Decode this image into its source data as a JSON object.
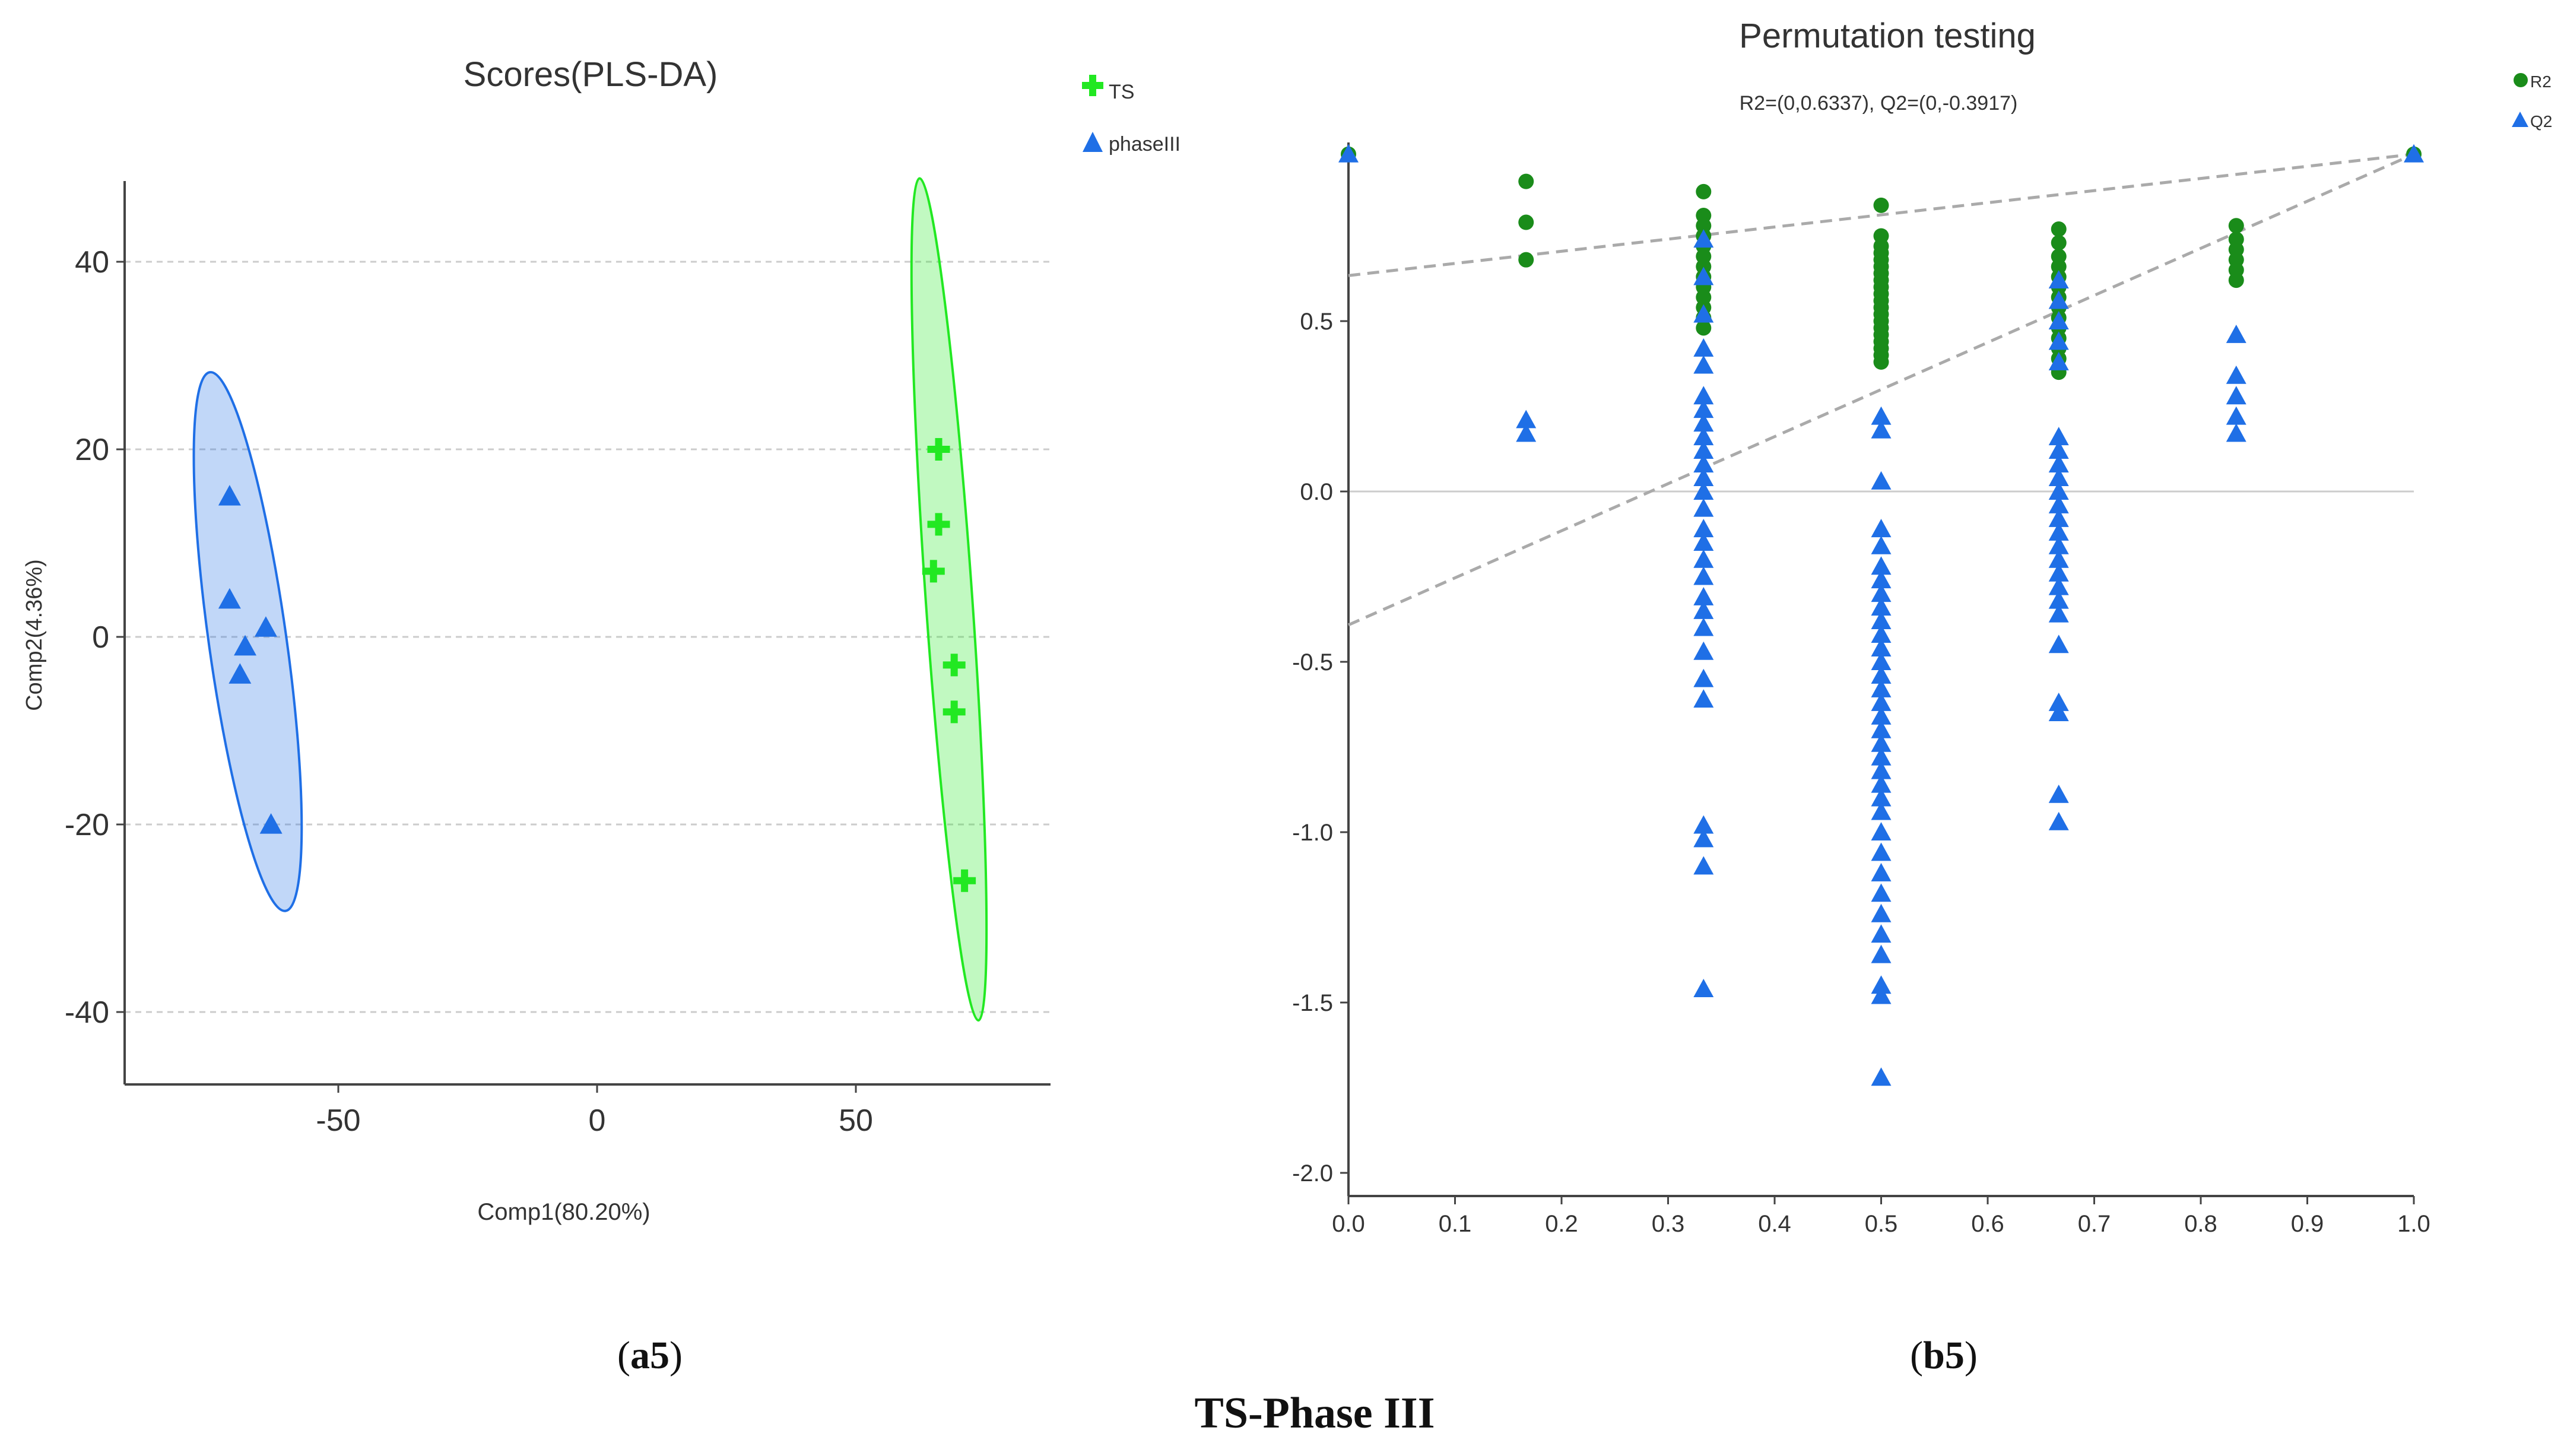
{
  "figure_title": "TS-Phase III",
  "colors": {
    "ts_green": "#22e822",
    "phase_blue": "#1f6fe6",
    "r2_green": "#1a8c1a",
    "q2_blue": "#1f6fe6",
    "axis": "#444444",
    "grid": "#cccccc",
    "trend": "#aaaaaa"
  },
  "panels": [
    {
      "caption": {
        "open": "(",
        "bold": "a5",
        "close": ")"
      }
    },
    {
      "caption": {
        "open": "(",
        "bold": "b5",
        "close": ")"
      }
    }
  ],
  "chart_data": [
    {
      "type": "scatter",
      "title": "Scores(PLS-DA)",
      "xlabel": "Comp1(80.20%)",
      "ylabel": "Comp2(4.36%)",
      "xlim": [
        -92,
        88
      ],
      "ylim": [
        -48,
        48
      ],
      "xticks": [
        -50,
        0,
        50
      ],
      "yticks": [
        40,
        20,
        0,
        -20,
        -40
      ],
      "xtick_labels": [
        "-50",
        "0",
        "50"
      ],
      "ytick_labels": [
        "40",
        "20",
        "0",
        "-20",
        "-40"
      ],
      "grid": "horizontal dashed",
      "legend_position": "top-right",
      "series": [
        {
          "name": "TS",
          "marker": "plus",
          "color": "#22e822",
          "x": [
            66,
            66,
            65,
            69,
            69,
            71
          ],
          "y": [
            20,
            12,
            7,
            -3,
            -8,
            -26
          ],
          "ellipse": {
            "cx": 68,
            "cy": 4,
            "rx": 4.5,
            "ry": 45,
            "angle_deg": 4
          }
        },
        {
          "name": "phaseIII",
          "marker": "triangle",
          "color": "#1f6fe6",
          "x": [
            -71,
            -71,
            -68,
            -64,
            -69,
            -63
          ],
          "y": [
            15,
            4,
            -1,
            1,
            -4,
            -20
          ],
          "ellipse": {
            "cx": -67.5,
            "cy": -0.5,
            "rx": 7.5,
            "ry": 29,
            "angle_deg": 8
          }
        }
      ]
    },
    {
      "type": "scatter",
      "title": "Permutation testing",
      "subtitle": "R2=(0,0.6337), Q2=(0,-0.3917)",
      "xlabel": "",
      "ylabel": "",
      "xlim": [
        0,
        1
      ],
      "ylim": [
        -2.05,
        1.03
      ],
      "xticks": [
        0,
        0.1,
        0.2,
        0.3,
        0.4,
        0.5,
        0.6,
        0.7,
        0.8,
        0.9,
        1.0
      ],
      "yticks": [
        0.5,
        0.0,
        -0.5,
        -1.0,
        -1.5,
        -2.0
      ],
      "xtick_labels": [
        "0.0",
        "0.1",
        "0.2",
        "0.3",
        "0.4",
        "0.5",
        "0.6",
        "0.7",
        "0.8",
        "0.9",
        "1.0"
      ],
      "ytick_labels": [
        "0.5",
        "0.0",
        "-0.5",
        "-1.0",
        "-1.5",
        "-2.0"
      ],
      "legend_position": "top-right",
      "reference_line_y": 0,
      "trend_lines": [
        {
          "name": "R2",
          "intercept": 0.6337,
          "end": [
            1.0,
            0.99
          ]
        },
        {
          "name": "Q2",
          "intercept": -0.3917,
          "end": [
            1.0,
            0.99
          ]
        }
      ],
      "series": [
        {
          "name": "R2",
          "marker": "circle",
          "color": "#1a8c1a",
          "points": [
            [
              0.0,
              0.99
            ],
            [
              0.1667,
              0.91
            ],
            [
              0.1667,
              0.79
            ],
            [
              0.1667,
              0.68
            ],
            [
              0.3333,
              0.88
            ],
            [
              0.3333,
              0.81
            ],
            [
              0.3333,
              0.78
            ],
            [
              0.3333,
              0.75
            ],
            [
              0.3333,
              0.72
            ],
            [
              0.3333,
              0.69
            ],
            [
              0.3333,
              0.66
            ],
            [
              0.3333,
              0.63
            ],
            [
              0.3333,
              0.6
            ],
            [
              0.3333,
              0.57
            ],
            [
              0.3333,
              0.54
            ],
            [
              0.3333,
              0.51
            ],
            [
              0.3333,
              0.48
            ],
            [
              0.5,
              0.84
            ],
            [
              0.5,
              0.75
            ],
            [
              0.5,
              0.72
            ],
            [
              0.5,
              0.7
            ],
            [
              0.5,
              0.68
            ],
            [
              0.5,
              0.66
            ],
            [
              0.5,
              0.64
            ],
            [
              0.5,
              0.62
            ],
            [
              0.5,
              0.6
            ],
            [
              0.5,
              0.58
            ],
            [
              0.5,
              0.56
            ],
            [
              0.5,
              0.54
            ],
            [
              0.5,
              0.52
            ],
            [
              0.5,
              0.5
            ],
            [
              0.5,
              0.48
            ],
            [
              0.5,
              0.46
            ],
            [
              0.5,
              0.44
            ],
            [
              0.5,
              0.42
            ],
            [
              0.5,
              0.4
            ],
            [
              0.5,
              0.38
            ],
            [
              0.6667,
              0.77
            ],
            [
              0.6667,
              0.73
            ],
            [
              0.6667,
              0.69
            ],
            [
              0.6667,
              0.66
            ],
            [
              0.6667,
              0.63
            ],
            [
              0.6667,
              0.6
            ],
            [
              0.6667,
              0.57
            ],
            [
              0.6667,
              0.54
            ],
            [
              0.6667,
              0.51
            ],
            [
              0.6667,
              0.48
            ],
            [
              0.6667,
              0.45
            ],
            [
              0.6667,
              0.42
            ],
            [
              0.6667,
              0.39
            ],
            [
              0.6667,
              0.35
            ],
            [
              0.8333,
              0.78
            ],
            [
              0.8333,
              0.74
            ],
            [
              0.8333,
              0.71
            ],
            [
              0.8333,
              0.68
            ],
            [
              0.8333,
              0.65
            ],
            [
              0.8333,
              0.62
            ],
            [
              1.0,
              0.99
            ]
          ]
        },
        {
          "name": "Q2",
          "marker": "triangle",
          "color": "#1f6fe6",
          "points": [
            [
              0.0,
              0.99
            ],
            [
              0.1667,
              0.21
            ],
            [
              0.1667,
              0.17
            ],
            [
              0.3333,
              0.74
            ],
            [
              0.3333,
              0.63
            ],
            [
              0.3333,
              0.52
            ],
            [
              0.3333,
              0.42
            ],
            [
              0.3333,
              0.37
            ],
            [
              0.3333,
              0.28
            ],
            [
              0.3333,
              0.24
            ],
            [
              0.3333,
              0.2
            ],
            [
              0.3333,
              0.16
            ],
            [
              0.3333,
              0.12
            ],
            [
              0.3333,
              0.08
            ],
            [
              0.3333,
              0.04
            ],
            [
              0.3333,
              0.0
            ],
            [
              0.3333,
              -0.05
            ],
            [
              0.3333,
              -0.11
            ],
            [
              0.3333,
              -0.15
            ],
            [
              0.3333,
              -0.2
            ],
            [
              0.3333,
              -0.25
            ],
            [
              0.3333,
              -0.31
            ],
            [
              0.3333,
              -0.35
            ],
            [
              0.3333,
              -0.4
            ],
            [
              0.3333,
              -0.47
            ],
            [
              0.3333,
              -0.55
            ],
            [
              0.3333,
              -0.61
            ],
            [
              0.3333,
              -0.98
            ],
            [
              0.3333,
              -1.02
            ],
            [
              0.3333,
              -1.1
            ],
            [
              0.3333,
              -1.46
            ],
            [
              0.5,
              0.22
            ],
            [
              0.5,
              0.18
            ],
            [
              0.5,
              0.03
            ],
            [
              0.5,
              -0.11
            ],
            [
              0.5,
              -0.16
            ],
            [
              0.5,
              -0.22
            ],
            [
              0.5,
              -0.26
            ],
            [
              0.5,
              -0.3
            ],
            [
              0.5,
              -0.34
            ],
            [
              0.5,
              -0.38
            ],
            [
              0.5,
              -0.42
            ],
            [
              0.5,
              -0.46
            ],
            [
              0.5,
              -0.5
            ],
            [
              0.5,
              -0.54
            ],
            [
              0.5,
              -0.58
            ],
            [
              0.5,
              -0.62
            ],
            [
              0.5,
              -0.66
            ],
            [
              0.5,
              -0.7
            ],
            [
              0.5,
              -0.74
            ],
            [
              0.5,
              -0.78
            ],
            [
              0.5,
              -0.82
            ],
            [
              0.5,
              -0.86
            ],
            [
              0.5,
              -0.9
            ],
            [
              0.5,
              -0.94
            ],
            [
              0.5,
              -1.0
            ],
            [
              0.5,
              -1.06
            ],
            [
              0.5,
              -1.12
            ],
            [
              0.5,
              -1.18
            ],
            [
              0.5,
              -1.24
            ],
            [
              0.5,
              -1.3
            ],
            [
              0.5,
              -1.36
            ],
            [
              0.5,
              -1.45
            ],
            [
              0.5,
              -1.48
            ],
            [
              0.5,
              -1.72
            ],
            [
              0.6667,
              0.62
            ],
            [
              0.6667,
              0.56
            ],
            [
              0.6667,
              0.5
            ],
            [
              0.6667,
              0.44
            ],
            [
              0.6667,
              0.38
            ],
            [
              0.6667,
              0.16
            ],
            [
              0.6667,
              0.12
            ],
            [
              0.6667,
              0.08
            ],
            [
              0.6667,
              0.04
            ],
            [
              0.6667,
              0.0
            ],
            [
              0.6667,
              -0.04
            ],
            [
              0.6667,
              -0.08
            ],
            [
              0.6667,
              -0.12
            ],
            [
              0.6667,
              -0.16
            ],
            [
              0.6667,
              -0.2
            ],
            [
              0.6667,
              -0.24
            ],
            [
              0.6667,
              -0.28
            ],
            [
              0.6667,
              -0.32
            ],
            [
              0.6667,
              -0.36
            ],
            [
              0.6667,
              -0.45
            ],
            [
              0.6667,
              -0.62
            ],
            [
              0.6667,
              -0.65
            ],
            [
              0.6667,
              -0.89
            ],
            [
              0.6667,
              -0.97
            ],
            [
              0.8333,
              0.46
            ],
            [
              0.8333,
              0.34
            ],
            [
              0.8333,
              0.28
            ],
            [
              0.8333,
              0.22
            ],
            [
              0.8333,
              0.17
            ],
            [
              1.0,
              0.99
            ]
          ]
        }
      ]
    }
  ]
}
